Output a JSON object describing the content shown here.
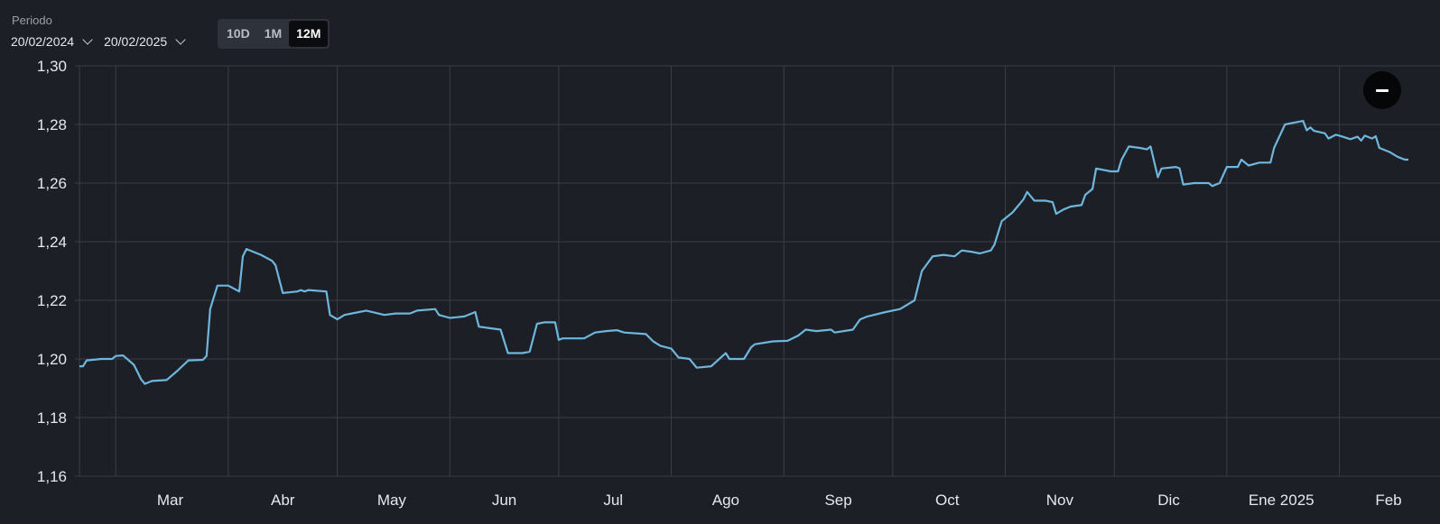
{
  "period": {
    "label": "Periodo",
    "start_date": "20/02/2024",
    "end_date": "20/02/2025"
  },
  "range_tabs": [
    {
      "label": "10D",
      "active": false
    },
    {
      "label": "1M",
      "active": false
    },
    {
      "label": "12M",
      "active": true
    }
  ],
  "zoom_out_icon": "minus-icon",
  "colors": {
    "background": "#1c1f26",
    "line": "#6fb6dc",
    "grid": "#3a3e47",
    "text": "#e6e8ec"
  },
  "chart_data": {
    "type": "line",
    "title": "",
    "xlabel": "",
    "ylabel": "",
    "ylim": [
      1.16,
      1.3
    ],
    "y_ticks": [
      "1,16",
      "1,18",
      "1,20",
      "1,22",
      "1,24",
      "1,26",
      "1,28",
      "1,30"
    ],
    "x_tick_labels": [
      "Mar",
      "Abr",
      "May",
      "Jun",
      "Jul",
      "Ago",
      "Sep",
      "Oct",
      "Nov",
      "Dic",
      "Ene 2025",
      "Feb"
    ],
    "x_range": [
      "2024-02-20",
      "2025-02-20"
    ],
    "grid": true,
    "series": [
      {
        "values": [
          [
            "2024-02-20",
            1.1975
          ],
          [
            "2024-02-21",
            1.1975
          ],
          [
            "2024-02-22",
            1.1995
          ],
          [
            "2024-02-26",
            1.2
          ],
          [
            "2024-02-29",
            1.2
          ],
          [
            "2024-03-01",
            1.201
          ],
          [
            "2024-03-03",
            1.2012
          ],
          [
            "2024-03-06",
            1.198
          ],
          [
            "2024-03-08",
            1.193
          ],
          [
            "2024-03-09",
            1.1915
          ],
          [
            "2024-03-11",
            1.1925
          ],
          [
            "2024-03-15",
            1.1928
          ],
          [
            "2024-03-18",
            1.196
          ],
          [
            "2024-03-21",
            1.1995
          ],
          [
            "2024-03-25",
            1.1997
          ],
          [
            "2024-03-26",
            1.201
          ],
          [
            "2024-03-27",
            1.217
          ],
          [
            "2024-03-29",
            1.225
          ],
          [
            "2024-04-01",
            1.225
          ],
          [
            "2024-04-04",
            1.223
          ],
          [
            "2024-04-05",
            1.235
          ],
          [
            "2024-04-06",
            1.2375
          ],
          [
            "2024-04-10",
            1.2355
          ],
          [
            "2024-04-13",
            1.2335
          ],
          [
            "2024-04-14",
            1.232
          ],
          [
            "2024-04-16",
            1.2225
          ],
          [
            "2024-04-20",
            1.223
          ],
          [
            "2024-04-21",
            1.2235
          ],
          [
            "2024-04-22",
            1.223
          ],
          [
            "2024-04-23",
            1.2235
          ],
          [
            "2024-04-28",
            1.223
          ],
          [
            "2024-04-29",
            1.215
          ],
          [
            "2024-05-01",
            1.2135
          ],
          [
            "2024-05-03",
            1.215
          ],
          [
            "2024-05-07",
            1.216
          ],
          [
            "2024-05-09",
            1.2165
          ],
          [
            "2024-05-14",
            1.215
          ],
          [
            "2024-05-17",
            1.2155
          ],
          [
            "2024-05-21",
            1.2155
          ],
          [
            "2024-05-23",
            1.2165
          ],
          [
            "2024-05-28",
            1.217
          ],
          [
            "2024-05-29",
            1.215
          ],
          [
            "2024-06-01",
            1.214
          ],
          [
            "2024-06-05",
            1.2145
          ],
          [
            "2024-06-08",
            1.216
          ],
          [
            "2024-06-09",
            1.211
          ],
          [
            "2024-06-12",
            1.2105
          ],
          [
            "2024-06-15",
            1.21
          ],
          [
            "2024-06-17",
            1.202
          ],
          [
            "2024-06-21",
            1.202
          ],
          [
            "2024-06-23",
            1.2025
          ],
          [
            "2024-06-25",
            1.212
          ],
          [
            "2024-06-27",
            1.2125
          ],
          [
            "2024-06-30",
            1.2125
          ],
          [
            "2024-07-01",
            1.2065
          ],
          [
            "2024-07-02",
            1.207
          ],
          [
            "2024-07-08",
            1.207
          ],
          [
            "2024-07-11",
            1.209
          ],
          [
            "2024-07-14",
            1.2095
          ],
          [
            "2024-07-17",
            1.2098
          ],
          [
            "2024-07-19",
            1.209
          ],
          [
            "2024-07-25",
            1.2085
          ],
          [
            "2024-07-27",
            1.206
          ],
          [
            "2024-07-29",
            1.2045
          ],
          [
            "2024-08-01",
            1.2035
          ],
          [
            "2024-08-03",
            1.2005
          ],
          [
            "2024-08-06",
            1.2
          ],
          [
            "2024-08-08",
            1.197
          ],
          [
            "2024-08-12",
            1.1975
          ],
          [
            "2024-08-16",
            1.202
          ],
          [
            "2024-08-17",
            1.2
          ],
          [
            "2024-08-21",
            1.2
          ],
          [
            "2024-08-23",
            1.204
          ],
          [
            "2024-08-24",
            1.205
          ],
          [
            "2024-08-29",
            1.206
          ],
          [
            "2024-09-02",
            1.2062
          ],
          [
            "2024-09-05",
            1.208
          ],
          [
            "2024-09-07",
            1.21
          ],
          [
            "2024-09-10",
            1.2095
          ],
          [
            "2024-09-14",
            1.21
          ],
          [
            "2024-09-15",
            1.209
          ],
          [
            "2024-09-20",
            1.21
          ],
          [
            "2024-09-22",
            1.2135
          ],
          [
            "2024-09-24",
            1.2145
          ],
          [
            "2024-09-29",
            1.216
          ],
          [
            "2024-10-03",
            1.217
          ],
          [
            "2024-10-07",
            1.22
          ],
          [
            "2024-10-09",
            1.23
          ],
          [
            "2024-10-12",
            1.235
          ],
          [
            "2024-10-15",
            1.2355
          ],
          [
            "2024-10-18",
            1.235
          ],
          [
            "2024-10-20",
            1.237
          ],
          [
            "2024-10-23",
            1.2365
          ],
          [
            "2024-10-25",
            1.236
          ],
          [
            "2024-10-28",
            1.237
          ],
          [
            "2024-10-29",
            1.239
          ],
          [
            "2024-10-31",
            1.247
          ],
          [
            "2024-11-03",
            1.25
          ],
          [
            "2024-11-06",
            1.2545
          ],
          [
            "2024-11-07",
            1.257
          ],
          [
            "2024-11-09",
            1.254
          ],
          [
            "2024-11-12",
            1.254
          ],
          [
            "2024-11-14",
            1.2535
          ],
          [
            "2024-11-15",
            1.2495
          ],
          [
            "2024-11-17",
            1.251
          ],
          [
            "2024-11-19",
            1.252
          ],
          [
            "2024-11-22",
            1.2525
          ],
          [
            "2024-11-23",
            1.256
          ],
          [
            "2024-11-25",
            1.258
          ],
          [
            "2024-11-26",
            1.265
          ],
          [
            "2024-11-30",
            1.264
          ],
          [
            "2024-12-02",
            1.264
          ],
          [
            "2024-12-03",
            1.268
          ],
          [
            "2024-12-05",
            1.2725
          ],
          [
            "2024-12-08",
            1.272
          ],
          [
            "2024-12-10",
            1.2715
          ],
          [
            "2024-12-11",
            1.2725
          ],
          [
            "2024-12-13",
            1.262
          ],
          [
            "2024-12-14",
            1.265
          ],
          [
            "2024-12-18",
            1.2655
          ],
          [
            "2024-12-19",
            1.265
          ],
          [
            "2024-12-20",
            1.2595
          ],
          [
            "2024-12-23",
            1.26
          ],
          [
            "2024-12-27",
            1.26
          ],
          [
            "2024-12-28",
            1.259
          ],
          [
            "2024-12-30",
            1.26
          ],
          [
            "2025-01-01",
            1.2655
          ],
          [
            "2025-01-04",
            1.2655
          ],
          [
            "2025-01-05",
            1.268
          ],
          [
            "2025-01-07",
            1.266
          ],
          [
            "2025-01-10",
            1.267
          ],
          [
            "2025-01-13",
            1.267
          ],
          [
            "2025-01-14",
            1.272
          ],
          [
            "2025-01-17",
            1.28
          ],
          [
            "2025-01-21",
            1.281
          ],
          [
            "2025-01-22",
            1.2812
          ],
          [
            "2025-01-23",
            1.278
          ],
          [
            "2025-01-24",
            1.279
          ],
          [
            "2025-01-25",
            1.2778
          ],
          [
            "2025-01-28",
            1.277
          ],
          [
            "2025-01-29",
            1.2752
          ],
          [
            "2025-01-31",
            1.2765
          ],
          [
            "2025-02-01",
            1.2762
          ],
          [
            "2025-02-04",
            1.275
          ],
          [
            "2025-02-06",
            1.2758
          ],
          [
            "2025-02-07",
            1.2745
          ],
          [
            "2025-02-08",
            1.2762
          ],
          [
            "2025-02-10",
            1.2752
          ],
          [
            "2025-02-11",
            1.276
          ],
          [
            "2025-02-12",
            1.272
          ],
          [
            "2025-02-15",
            1.2705
          ],
          [
            "2025-02-17",
            1.269
          ],
          [
            "2025-02-19",
            1.268
          ],
          [
            "2025-02-20",
            1.268
          ]
        ]
      }
    ]
  }
}
